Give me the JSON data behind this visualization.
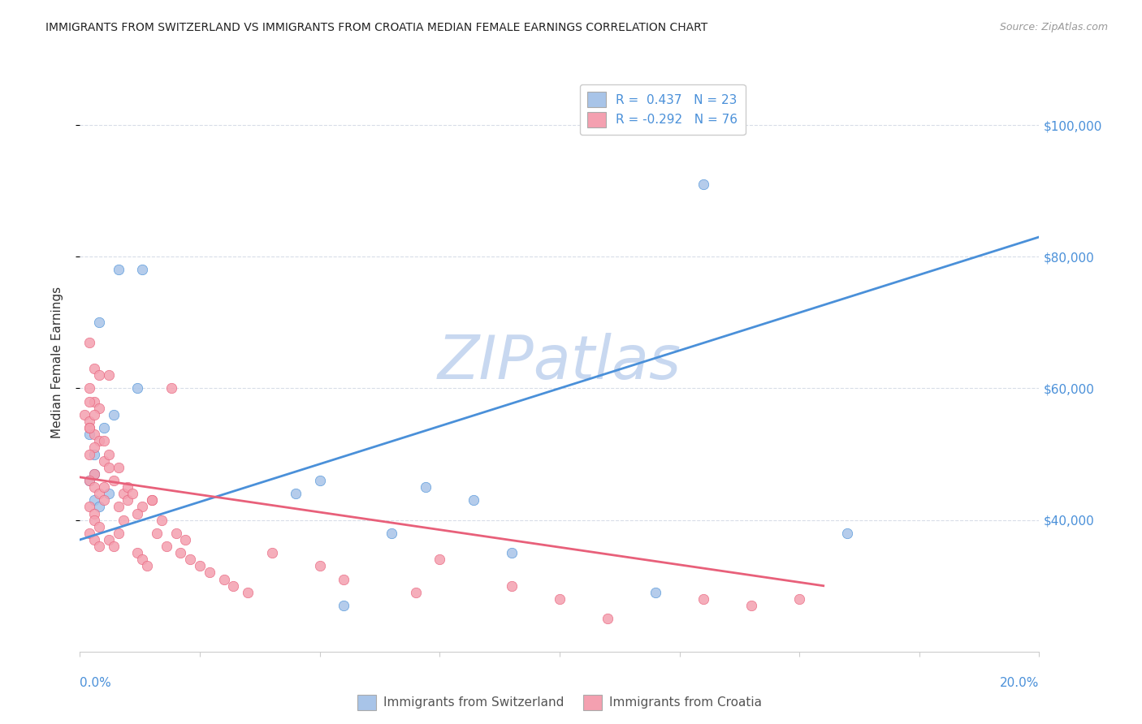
{
  "title": "IMMIGRANTS FROM SWITZERLAND VS IMMIGRANTS FROM CROATIA MEDIAN FEMALE EARNINGS CORRELATION CHART",
  "source": "Source: ZipAtlas.com",
  "ylabel": "Median Female Earnings",
  "y_tick_labels": [
    "$40,000",
    "$60,000",
    "$80,000",
    "$100,000"
  ],
  "y_tick_values": [
    40000,
    60000,
    80000,
    100000
  ],
  "xlim": [
    0.0,
    0.2
  ],
  "ylim": [
    20000,
    108000
  ],
  "legend_entry1": "R =  0.437   N = 23",
  "legend_entry2": "R = -0.292   N = 76",
  "series1_color": "#a8c4e8",
  "series2_color": "#f4a0b0",
  "line1_color": "#4a90d9",
  "line2_color": "#e8607a",
  "watermark": "ZIPatlas",
  "watermark_color": "#c8d8f0",
  "background_color": "#ffffff",
  "grid_color": "#d8dde8",
  "scatter1_x": [
    0.002,
    0.008,
    0.013,
    0.004,
    0.003,
    0.005,
    0.003,
    0.002,
    0.007,
    0.003,
    0.004,
    0.012,
    0.006,
    0.072,
    0.065,
    0.05,
    0.082,
    0.16,
    0.09,
    0.12,
    0.045,
    0.055,
    0.13
  ],
  "scatter1_y": [
    53000,
    78000,
    78000,
    70000,
    50000,
    54000,
    47000,
    46000,
    56000,
    43000,
    42000,
    60000,
    44000,
    45000,
    38000,
    46000,
    43000,
    38000,
    35000,
    29000,
    44000,
    27000,
    91000
  ],
  "scatter2_x": [
    0.002,
    0.003,
    0.004,
    0.002,
    0.003,
    0.004,
    0.001,
    0.002,
    0.002,
    0.003,
    0.004,
    0.003,
    0.002,
    0.005,
    0.006,
    0.003,
    0.002,
    0.003,
    0.004,
    0.005,
    0.002,
    0.003,
    0.003,
    0.004,
    0.002,
    0.003,
    0.004,
    0.002,
    0.003,
    0.002,
    0.005,
    0.006,
    0.008,
    0.007,
    0.006,
    0.005,
    0.009,
    0.01,
    0.008,
    0.009,
    0.008,
    0.006,
    0.007,
    0.012,
    0.013,
    0.014,
    0.01,
    0.011,
    0.015,
    0.013,
    0.012,
    0.017,
    0.016,
    0.018,
    0.015,
    0.02,
    0.022,
    0.019,
    0.021,
    0.023,
    0.025,
    0.027,
    0.03,
    0.032,
    0.035,
    0.04,
    0.05,
    0.055,
    0.07,
    0.075,
    0.09,
    0.1,
    0.11,
    0.13,
    0.15,
    0.14
  ],
  "scatter2_y": [
    67000,
    63000,
    62000,
    60000,
    58000,
    57000,
    56000,
    55000,
    54000,
    53000,
    52000,
    51000,
    50000,
    49000,
    48000,
    47000,
    46000,
    45000,
    44000,
    43000,
    42000,
    41000,
    40000,
    39000,
    38000,
    37000,
    36000,
    58000,
    56000,
    54000,
    52000,
    50000,
    48000,
    46000,
    62000,
    45000,
    44000,
    43000,
    42000,
    40000,
    38000,
    37000,
    36000,
    35000,
    34000,
    33000,
    45000,
    44000,
    43000,
    42000,
    41000,
    40000,
    38000,
    36000,
    43000,
    38000,
    37000,
    60000,
    35000,
    34000,
    33000,
    32000,
    31000,
    30000,
    29000,
    35000,
    33000,
    31000,
    29000,
    34000,
    30000,
    28000,
    25000,
    28000,
    28000,
    27000
  ],
  "line1_x0": 0.0,
  "line1_x1": 0.2,
  "line1_y0": 37000,
  "line1_y1": 83000,
  "line2_x0": 0.0,
  "line2_x1": 0.155,
  "line2_y0": 46500,
  "line2_y1": 30000
}
